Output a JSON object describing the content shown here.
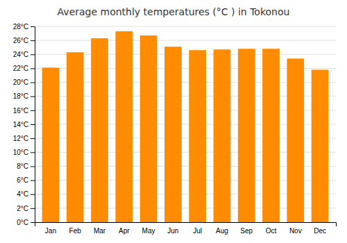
{
  "chart_data": {
    "type": "bar",
    "title": "Average monthly temperatures (°C ) in Tokonou",
    "categories": [
      "Jan",
      "Feb",
      "Mar",
      "Apr",
      "May",
      "Jun",
      "Jul",
      "Aug",
      "Sep",
      "Oct",
      "Nov",
      "Dec"
    ],
    "values": [
      22.1,
      24.3,
      26.3,
      27.3,
      26.7,
      25.1,
      24.6,
      24.7,
      24.8,
      24.8,
      23.4,
      21.8
    ],
    "color": "#ff8c00",
    "ylim": [
      0,
      28
    ],
    "yticks": [
      {
        "value": 0,
        "label": "0°C"
      },
      {
        "value": 2,
        "label": "2°C"
      },
      {
        "value": 4,
        "label": "4°C"
      },
      {
        "value": 6,
        "label": "6°C"
      },
      {
        "value": 8,
        "label": "8°C"
      },
      {
        "value": 10,
        "label": "10°C"
      },
      {
        "value": 12,
        "label": "12°C"
      },
      {
        "value": 14,
        "label": "14°C"
      },
      {
        "value": 16,
        "label": "16°C"
      },
      {
        "value": 18,
        "label": "18°C"
      },
      {
        "value": 20,
        "label": "20°C"
      },
      {
        "value": 22,
        "label": "22°C"
      },
      {
        "value": 24,
        "label": "24°C"
      },
      {
        "value": 26,
        "label": "26°C"
      },
      {
        "value": 28,
        "label": "28°C"
      }
    ],
    "grid": true
  }
}
